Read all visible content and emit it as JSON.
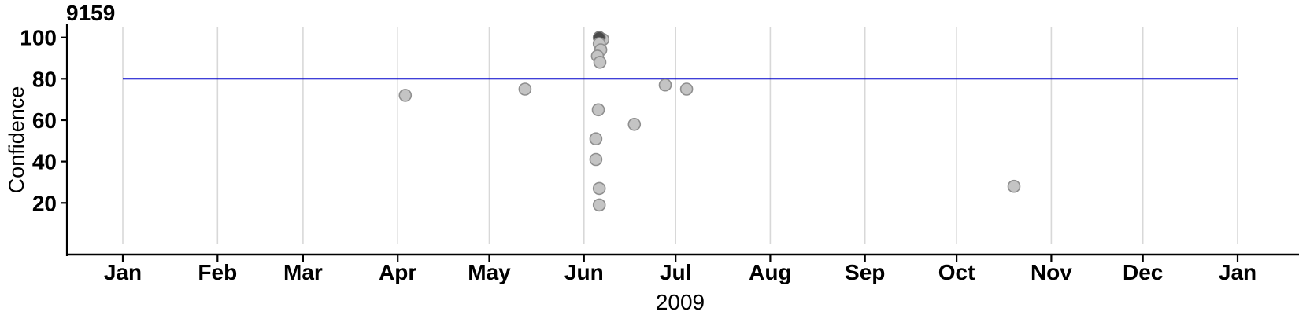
{
  "chart_data": {
    "type": "scatter",
    "title": "9159",
    "xlabel": "2009",
    "ylabel": "Confidence",
    "grid": "vertical-month-gridlines",
    "legend": "none",
    "colors": {
      "ref_line": "#0000CC",
      "point_fill": "#C4C4C4",
      "point_stroke": "#8F8F8F",
      "dense_point_fill": "#4A4A4A",
      "dense_point_stroke": "#7A7A7A",
      "grid": "#D8D8D8",
      "axis": "#000000",
      "text": "#000000"
    },
    "y_axis": {
      "ticks": [
        20,
        40,
        60,
        80,
        100
      ],
      "ylim": [
        0,
        105
      ]
    },
    "x_axis": {
      "tick_labels": [
        "Jan",
        "Feb",
        "Mar",
        "Apr",
        "May",
        "Jun",
        "Jul",
        "Aug",
        "Sep",
        "Oct",
        "Nov",
        "Dec",
        "Jan"
      ],
      "tick_days": [
        0,
        31,
        59,
        90,
        120,
        151,
        181,
        212,
        243,
        273,
        304,
        334,
        365
      ],
      "year": "2009"
    },
    "ref_line": {
      "y": 80,
      "span_days": [
        0,
        365
      ]
    },
    "points": [
      {
        "date": "2009-04-03",
        "day": 92.5,
        "confidence": 72
      },
      {
        "date": "2009-05-12",
        "day": 131.7,
        "confidence": 75
      },
      {
        "date": "2009-06-07",
        "day": 157.2,
        "confidence": 99
      },
      {
        "date": "2009-06-06",
        "day": 156.0,
        "confidence": 100,
        "overplotted": true
      },
      {
        "date": "2009-06-06",
        "day": 156.0,
        "confidence": 97
      },
      {
        "date": "2009-06-06",
        "day": 156.5,
        "confidence": 94
      },
      {
        "date": "2009-06-05",
        "day": 155.4,
        "confidence": 91
      },
      {
        "date": "2009-06-06",
        "day": 156.2,
        "confidence": 88
      },
      {
        "date": "2009-06-06",
        "day": 155.7,
        "confidence": 65
      },
      {
        "date": "2009-06-05",
        "day": 154.9,
        "confidence": 51
      },
      {
        "date": "2009-06-05",
        "day": 154.9,
        "confidence": 41
      },
      {
        "date": "2009-06-06",
        "day": 156.0,
        "confidence": 27
      },
      {
        "date": "2009-06-06",
        "day": 156.0,
        "confidence": 19
      },
      {
        "date": "2009-06-17",
        "day": 167.5,
        "confidence": 58
      },
      {
        "date": "2009-06-27",
        "day": 177.6,
        "confidence": 77
      },
      {
        "date": "2009-07-04",
        "day": 184.6,
        "confidence": 75
      },
      {
        "date": "2009-10-19",
        "day": 291.8,
        "confidence": 28
      }
    ]
  }
}
